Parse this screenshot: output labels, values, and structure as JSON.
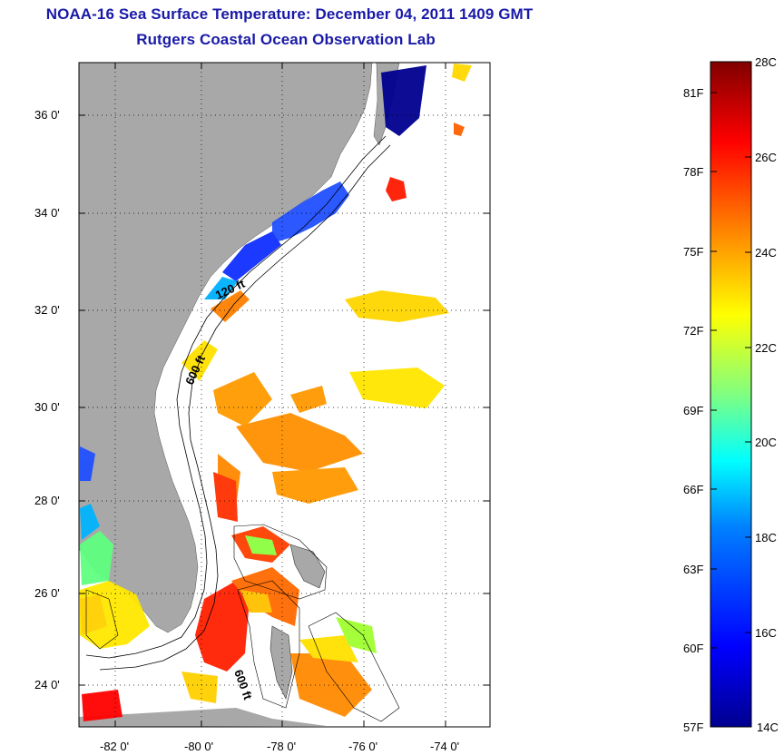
{
  "title_line1": "NOAA-16 Sea Surface Temperature:  December 04, 2011 1409 GMT",
  "title_line2": "Rutgers Coastal Ocean Observation Lab",
  "map": {
    "lat_labels": [
      "36 0'",
      "34 0'",
      "32 0'",
      "30 0'",
      "28 0'",
      "26 0'",
      "24 0'"
    ],
    "lon_labels": [
      "-82 0'",
      "-80 0'",
      "-78 0'",
      "-76 0'",
      "-74 0'"
    ],
    "lat_range": [
      23,
      37.3
    ],
    "lon_range": [
      -83,
      -73
    ],
    "isobath_labels": [
      "120 ft",
      "600 ft",
      "600 ft"
    ],
    "land_color": "#a8a8a8",
    "missing_data_color": "#ffffff"
  },
  "colorbar": {
    "celsius_labels": [
      "28C",
      "26C",
      "24C",
      "22C",
      "20C",
      "18C",
      "16C",
      "14C"
    ],
    "fahrenheit_labels": [
      "81F",
      "78F",
      "75F",
      "72F",
      "69F",
      "66F",
      "63F",
      "60F",
      "57F"
    ],
    "range_c": [
      14,
      28
    ],
    "colors": [
      "#00008f",
      "#0000ff",
      "#0080ff",
      "#00ffff",
      "#80ff80",
      "#ffff00",
      "#ff8000",
      "#ff0000",
      "#800000"
    ]
  }
}
